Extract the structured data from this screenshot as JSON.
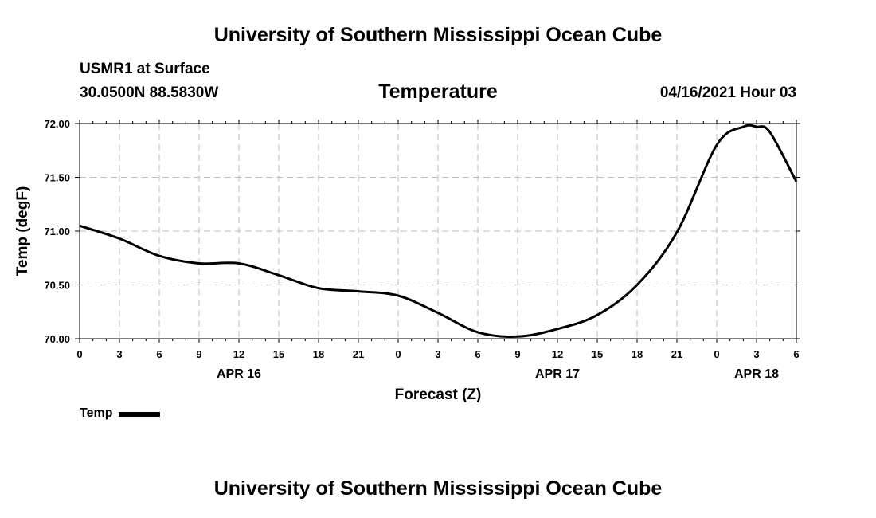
{
  "header": {
    "org_title": "University of Southern Mississippi Ocean Cube",
    "station": "USMR1 at Surface",
    "coords": "30.0500N  88.5830W",
    "datetime": "04/16/2021 Hour 03"
  },
  "footer": {
    "org_title": "University of Southern Mississippi Ocean Cube"
  },
  "chart_data": {
    "type": "line",
    "title": "Temperature",
    "xlabel": "Forecast (Z)",
    "ylabel": "Temp (degF)",
    "ylim": [
      70.0,
      72.0
    ],
    "xlim": [
      0,
      54
    ],
    "y_ticks": [
      "70.00",
      "70.50",
      "71.00",
      "71.50",
      "72.00"
    ],
    "x_tick_labels": [
      "0",
      "3",
      "6",
      "9",
      "12",
      "15",
      "18",
      "21",
      "0",
      "3",
      "6",
      "9",
      "12",
      "15",
      "18",
      "21",
      "0",
      "3",
      "6"
    ],
    "date_labels": [
      {
        "label": "APR 16",
        "hour": 12
      },
      {
        "label": "APR 17",
        "hour": 36
      },
      {
        "label": "APR 18",
        "hour": 51
      }
    ],
    "grid": true,
    "series": [
      {
        "name": "Temp",
        "color": "#000000",
        "x": [
          0,
          3,
          6,
          9,
          12,
          15,
          18,
          21,
          24,
          27,
          30,
          33,
          36,
          39,
          42,
          45,
          48,
          50,
          51,
          52,
          54
        ],
        "values": [
          71.05,
          70.93,
          70.77,
          70.7,
          70.7,
          70.59,
          70.47,
          70.44,
          70.4,
          70.24,
          70.06,
          70.02,
          70.09,
          70.22,
          70.5,
          70.99,
          71.8,
          71.97,
          71.97,
          71.92,
          71.46
        ]
      }
    ],
    "legend": [
      {
        "label": "Temp",
        "position": "bottom-left"
      }
    ]
  }
}
